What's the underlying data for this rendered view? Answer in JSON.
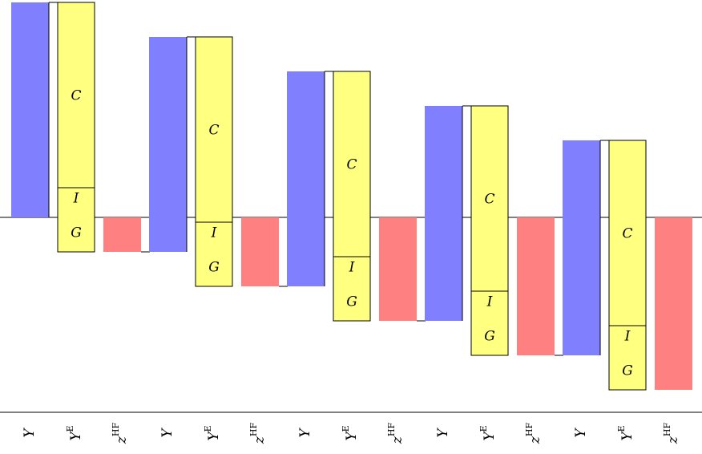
{
  "groups": [
    {
      "bars": [
        {
          "label": "Y"
        },
        {
          "label": "Y",
          "sup": "E",
          "segments": [
            "C",
            "I",
            "G"
          ]
        },
        {
          "label": "z",
          "sup": "HF"
        }
      ]
    },
    {
      "bars": [
        {
          "label": "Y"
        },
        {
          "label": "Y",
          "sup": "E",
          "segments": [
            "C",
            "I",
            "G"
          ]
        },
        {
          "label": "z",
          "sup": "HF"
        }
      ]
    },
    {
      "bars": [
        {
          "label": "Y"
        },
        {
          "label": "Y",
          "sup": "E",
          "segments": [
            "C",
            "I",
            "G"
          ]
        },
        {
          "label": "z",
          "sup": "HF"
        }
      ]
    },
    {
      "bars": [
        {
          "label": "Y"
        },
        {
          "label": "Y",
          "sup": "E",
          "segments": [
            "C",
            "I",
            "G"
          ]
        },
        {
          "label": "z",
          "sup": "HF"
        }
      ]
    },
    {
      "bars": [
        {
          "label": "Y"
        },
        {
          "label": "Y",
          "sup": "E",
          "segments": [
            "C",
            "I",
            "G"
          ]
        },
        {
          "label": "z",
          "sup": "HF"
        }
      ]
    }
  ]
}
